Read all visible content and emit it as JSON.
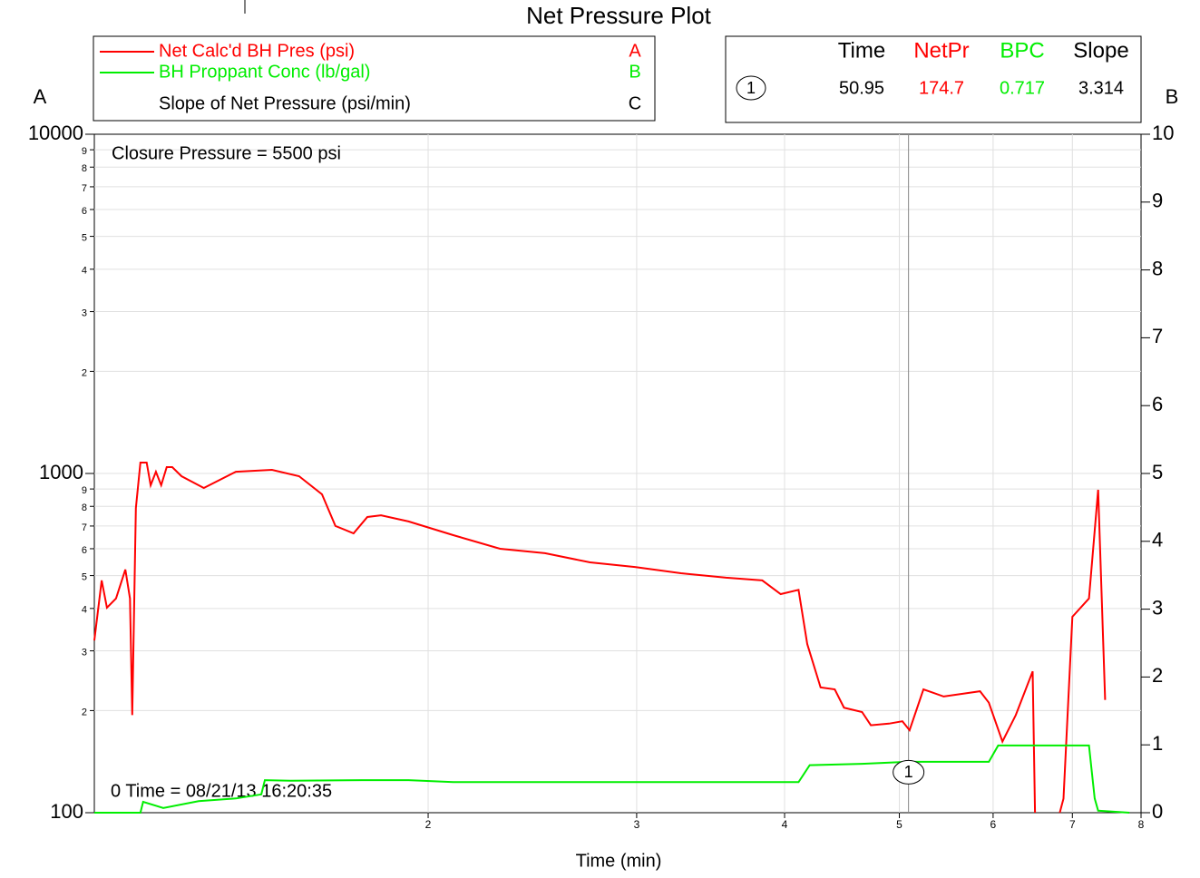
{
  "chart_data": {
    "type": "line",
    "title": "Net Pressure Plot",
    "xlabel": "Time (min)",
    "ylabel": "A",
    "y2label": "B",
    "xscale": "log",
    "yscale": "log",
    "grid": true,
    "xlim": [
      1.045,
      8
    ],
    "xticks": [
      2,
      3,
      4,
      5,
      6,
      7,
      8
    ],
    "ylim": [
      100,
      10000
    ],
    "yticks": [
      100,
      {
        "value": 200,
        "label": "2"
      },
      {
        "value": 300,
        "label": "3"
      },
      {
        "value": 400,
        "label": "4"
      },
      {
        "value": 500,
        "label": "5"
      },
      {
        "value": 600,
        "label": "6"
      },
      {
        "value": 700,
        "label": "7"
      },
      {
        "value": 800,
        "label": "8"
      },
      {
        "value": 900,
        "label": "9"
      },
      1000,
      {
        "value": 2000,
        "label": "2"
      },
      {
        "value": 3000,
        "label": "3"
      },
      {
        "value": 4000,
        "label": "4"
      },
      {
        "value": 5000,
        "label": "5"
      },
      {
        "value": 6000,
        "label": "6"
      },
      {
        "value": 7000,
        "label": "7"
      },
      {
        "value": 8000,
        "label": "8"
      },
      {
        "value": 9000,
        "label": "9"
      },
      10000
    ],
    "y2lim": [
      0,
      10
    ],
    "y2ticks": [
      0,
      1,
      2,
      3,
      4,
      5,
      6,
      7,
      8,
      9,
      10
    ],
    "annotations": [
      "Closure Pressure = 5500 psi",
      "0 Time = 08/21/13 16:20:35"
    ],
    "series": [
      {
        "name": "Net Calc'd BH Pres (psi)",
        "letter": "A",
        "color": "#ff0000",
        "axis": "y",
        "x": [
          1.045,
          1.06,
          1.071,
          1.09,
          1.11,
          1.12,
          1.125,
          1.133,
          1.143,
          1.157,
          1.166,
          1.178,
          1.19,
          1.203,
          1.216,
          1.238,
          1.293,
          1.376,
          1.476,
          1.556,
          1.627,
          1.67,
          1.73,
          1.777,
          1.825,
          1.925,
          2.1,
          2.3,
          2.51,
          2.74,
          2.99,
          3.27,
          3.57,
          3.83,
          3.97,
          4.11,
          4.18,
          4.29,
          4.41,
          4.49,
          4.65,
          4.73,
          4.9,
          5.03,
          5.1,
          5.24,
          5.45,
          5.85,
          5.95,
          6.11,
          6.27,
          6.48,
          6.51,
          6.7,
          6.83,
          6.88,
          7.0,
          7.23,
          7.36,
          7.46
        ],
        "values": [
          322,
          484,
          402,
          428,
          521,
          428,
          194,
          791,
          1077,
          1077,
          923,
          1012,
          923,
          1044,
          1044,
          982,
          906,
          1012,
          1025,
          982,
          868,
          700,
          666,
          744,
          753,
          722,
          658,
          600,
          582,
          547,
          530,
          508,
          493,
          484,
          441,
          454,
          314,
          234,
          231,
          204,
          198,
          181,
          183,
          186,
          175,
          231,
          220,
          228,
          211,
          162,
          194,
          261,
          100,
          null,
          100,
          110,
          378,
          428,
          895,
          215
        ]
      },
      {
        "name": "BH Proppant Conc (lb/gal)",
        "letter": "B",
        "color": "#00ee00",
        "axis": "y2",
        "x": [
          1.045,
          1.143,
          1.149,
          1.195,
          1.28,
          1.376,
          1.446,
          1.456,
          1.53,
          1.76,
          1.925,
          2.1,
          2.51,
          2.99,
          3.57,
          4.11,
          4.2,
          4.65,
          5.08,
          5.95,
          6.06,
          7.23,
          7.31,
          7.36,
          7.82
        ],
        "values": [
          0,
          0,
          0.16,
          0.07,
          0.17,
          0.21,
          0.27,
          0.48,
          0.47,
          0.48,
          0.48,
          0.45,
          0.45,
          0.45,
          0.45,
          0.45,
          0.7,
          0.72,
          0.75,
          0.75,
          0.99,
          0.99,
          0.21,
          0.03,
          0
        ]
      },
      {
        "name": "Slope of Net Pressure (psi/min)",
        "letter": "C",
        "color": "#000000",
        "axis": "y",
        "x": [],
        "values": []
      }
    ],
    "cursor": {
      "label": "1",
      "x": 5.09,
      "columns": [
        "Time",
        "NetPr",
        "BPC",
        "Slope"
      ],
      "column_colors": [
        "#000000",
        "#ff0000",
        "#00ee00",
        "#000000"
      ],
      "values": [
        50.95,
        174.7,
        0.717,
        3.314
      ]
    }
  }
}
